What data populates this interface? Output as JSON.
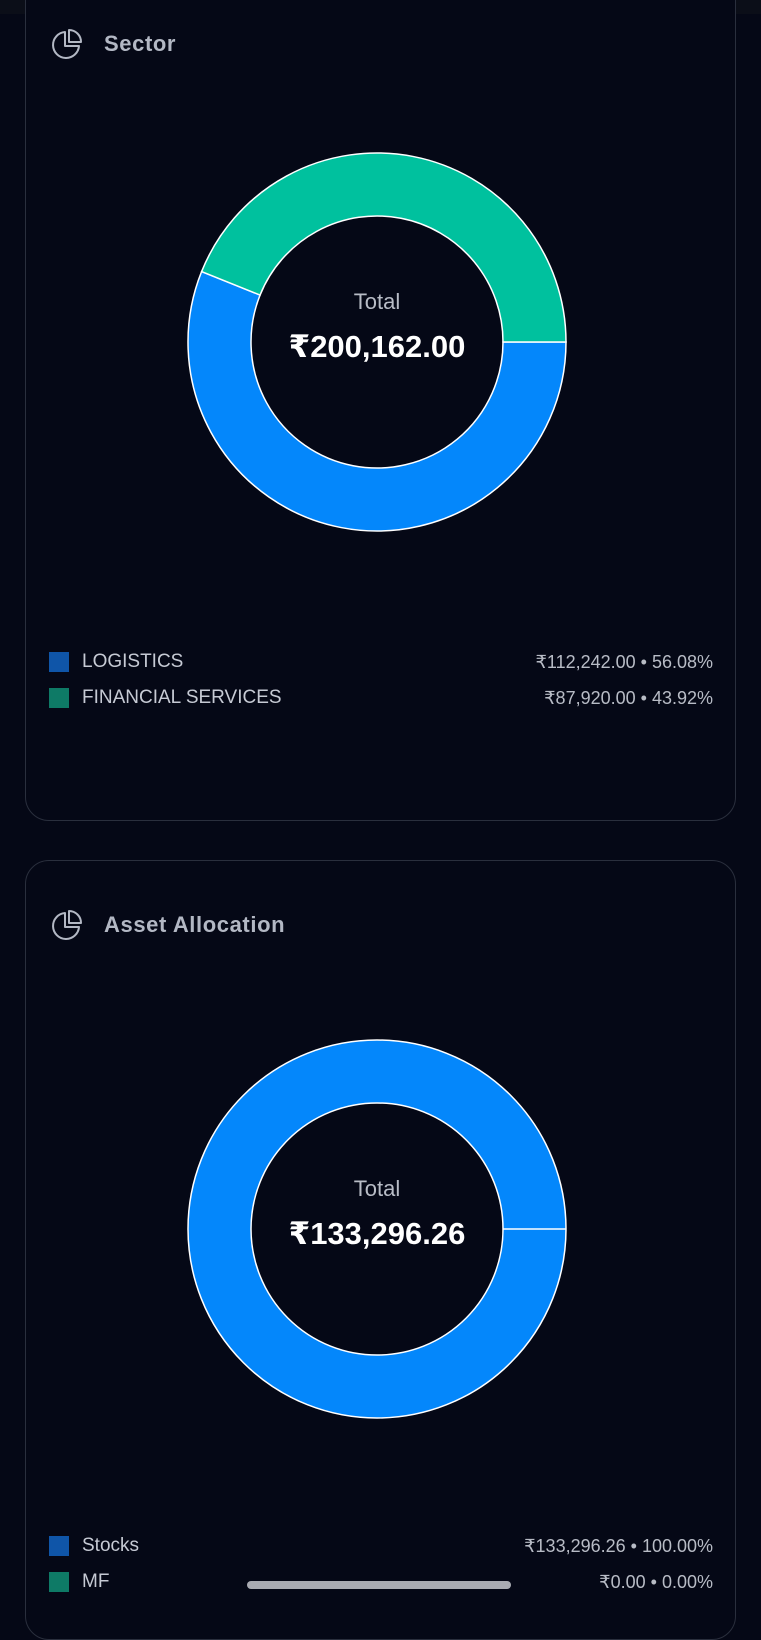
{
  "colors": {
    "background": "#050816",
    "card_border": "#2a2f3d",
    "series_blue": "#0487fb",
    "series_green": "#00c19e",
    "swatch_blue": "#0f55a8",
    "swatch_green": "#0e7a66"
  },
  "sector": {
    "title": "Sector",
    "icon": "pie-chart-icon",
    "total_label": "Total",
    "total_value": "₹200,162.00",
    "items": [
      {
        "name": "LOGISTICS",
        "value": "₹112,242.00 • 56.08%"
      },
      {
        "name": "FINANCIAL SERVICES",
        "value": "₹87,920.00 • 43.92%"
      }
    ]
  },
  "asset_allocation": {
    "title": "Asset Allocation",
    "icon": "pie-chart-icon",
    "total_label": "Total",
    "total_value": "₹133,296.26",
    "items": [
      {
        "name": "Stocks",
        "value": "₹133,296.26 • 100.00%"
      },
      {
        "name": "MF",
        "value": "₹0.00 • 0.00%"
      }
    ]
  },
  "chart_data": [
    {
      "type": "pie",
      "title": "Sector",
      "categories": [
        "LOGISTICS",
        "FINANCIAL SERVICES"
      ],
      "values": [
        112242.0,
        87920.0
      ],
      "percentages": [
        56.08,
        43.92
      ],
      "colors": [
        "#0487fb",
        "#00c19e"
      ]
    },
    {
      "type": "pie",
      "title": "Asset Allocation",
      "categories": [
        "Stocks",
        "MF"
      ],
      "values": [
        133296.26,
        0.0
      ],
      "percentages": [
        100.0,
        0.0
      ],
      "colors": [
        "#0487fb",
        "#00c19e"
      ]
    }
  ]
}
